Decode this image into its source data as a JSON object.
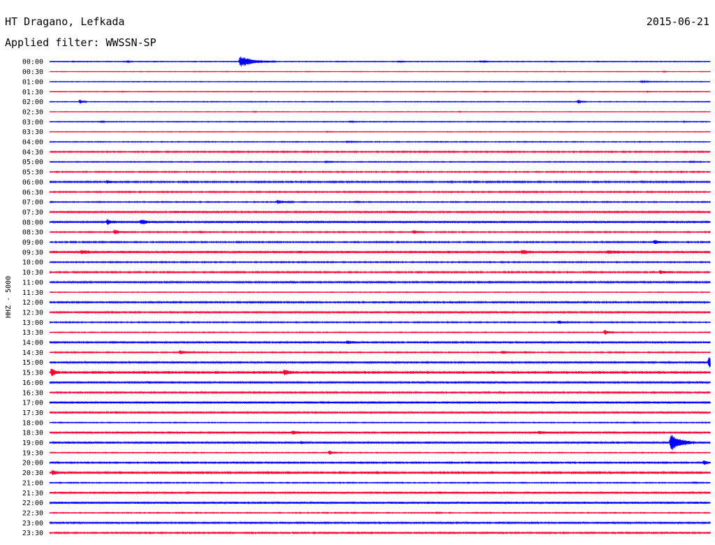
{
  "header": {
    "station": "HT Dragano, Lefkada",
    "date": "2015-06-21",
    "filter": "Applied filter: WWSSN-SP"
  },
  "chart_data": {
    "type": "line",
    "ylabel": "HHZ - 5000",
    "colors": {
      "even": "#0000ff",
      "odd": "#ff0033"
    },
    "rows": [
      {
        "label": "00:00",
        "noise": 0.6,
        "events": [
          [
            0.035,
            0.45,
            7
          ],
          [
            0.118,
            1.0,
            7
          ],
          [
            0.288,
            8.0,
            40
          ],
          [
            0.528,
            1.1,
            10
          ],
          [
            0.652,
            1.5,
            12
          ],
          [
            0.76,
            0.4,
            5
          ]
        ]
      },
      {
        "label": "00:30",
        "noise": 0.5,
        "events": [
          [
            0.268,
            0.5,
            4
          ],
          [
            0.93,
            0.6,
            5
          ]
        ]
      },
      {
        "label": "01:00",
        "noise": 0.5,
        "events": [
          [
            0.785,
            0.5,
            5
          ],
          [
            0.895,
            0.9,
            30
          ]
        ]
      },
      {
        "label": "01:30",
        "noise": 0.5,
        "events": [
          [
            0.11,
            0.5,
            5
          ],
          [
            0.66,
            0.5,
            5
          ],
          [
            0.905,
            0.5,
            5
          ]
        ]
      },
      {
        "label": "02:00",
        "noise": 0.6,
        "events": [
          [
            0.046,
            3.5,
            8
          ],
          [
            0.8,
            3.2,
            8
          ]
        ]
      },
      {
        "label": "02:30",
        "noise": 0.5,
        "events": [
          [
            0.31,
            0.5,
            5
          ],
          [
            0.62,
            0.5,
            5
          ]
        ]
      },
      {
        "label": "03:00",
        "noise": 0.6,
        "events": [
          [
            0.077,
            0.7,
            14
          ],
          [
            0.455,
            1.2,
            10
          ],
          [
            0.785,
            0.5,
            5
          ],
          [
            0.96,
            0.5,
            5
          ]
        ]
      },
      {
        "label": "03:30",
        "noise": 0.5,
        "events": [
          [
            0.42,
            0.6,
            6
          ]
        ]
      },
      {
        "label": "04:00",
        "noise": 0.7,
        "events": [
          [
            0.45,
            0.7,
            15
          ]
        ]
      },
      {
        "label": "04:30",
        "noise": 1.0,
        "events": []
      },
      {
        "label": "05:00",
        "noise": 0.7,
        "events": [
          [
            0.418,
            1.0,
            10
          ],
          [
            0.97,
            0.8,
            15
          ]
        ]
      },
      {
        "label": "05:30",
        "noise": 0.9,
        "events": [
          [
            0.37,
            0.6,
            10
          ],
          [
            0.885,
            0.7,
            10
          ]
        ]
      },
      {
        "label": "06:00",
        "noise": 1.1,
        "events": [
          [
            0.087,
            2.5,
            12
          ]
        ]
      },
      {
        "label": "06:30",
        "noise": 1.0,
        "events": [
          [
            0.72,
            0.6,
            12
          ]
        ]
      },
      {
        "label": "07:00",
        "noise": 0.8,
        "events": [
          [
            0.345,
            2.5,
            20
          ],
          [
            0.465,
            1.0,
            5
          ]
        ]
      },
      {
        "label": "07:30",
        "noise": 1.3,
        "events": [
          [
            0.19,
            0.9,
            40
          ],
          [
            0.52,
            0.9,
            40
          ]
        ]
      },
      {
        "label": "08:00",
        "noise": 1.6,
        "events": [
          [
            0.087,
            3.5,
            12
          ],
          [
            0.138,
            3.5,
            16
          ]
        ]
      },
      {
        "label": "08:30",
        "noise": 0.9,
        "events": [
          [
            0.098,
            3.5,
            18
          ],
          [
            0.228,
            1.5,
            6
          ],
          [
            0.55,
            2.5,
            14
          ]
        ]
      },
      {
        "label": "09:00",
        "noise": 1.0,
        "events": [
          [
            0.915,
            3.0,
            16
          ]
        ]
      },
      {
        "label": "09:30",
        "noise": 1.8,
        "events": [
          [
            0.048,
            3.0,
            14
          ],
          [
            0.715,
            3.0,
            14
          ],
          [
            0.845,
            1.3,
            30
          ]
        ]
      },
      {
        "label": "10:00",
        "noise": 0.9,
        "events": []
      },
      {
        "label": "10:30",
        "noise": 1.1,
        "events": [
          [
            0.924,
            2.5,
            14
          ]
        ]
      },
      {
        "label": "11:00",
        "noise": 1.3,
        "events": []
      },
      {
        "label": "11:30",
        "noise": 0.6,
        "events": []
      },
      {
        "label": "12:00",
        "noise": 1.2,
        "events": []
      },
      {
        "label": "12:30",
        "noise": 1.3,
        "events": []
      },
      {
        "label": "13:00",
        "noise": 0.9,
        "events": [
          [
            0.77,
            2.5,
            12
          ]
        ]
      },
      {
        "label": "13:30",
        "noise": 0.7,
        "events": [
          [
            0.84,
            4.0,
            12
          ]
        ]
      },
      {
        "label": "14:00",
        "noise": 1.4,
        "events": [
          [
            0.45,
            2.5,
            12
          ]
        ]
      },
      {
        "label": "14:30",
        "noise": 0.9,
        "events": [
          [
            0.197,
            3.5,
            18
          ],
          [
            0.685,
            2.5,
            10
          ],
          [
            0.72,
            1.5,
            10
          ]
        ]
      },
      {
        "label": "15:00",
        "noise": 1.4,
        "events": [
          [
            0.998,
            9.0,
            10
          ]
        ]
      },
      {
        "label": "15:30",
        "noise": 2.0,
        "events": [
          [
            0.003,
            6.0,
            10
          ],
          [
            0.355,
            3.0,
            14
          ]
        ]
      },
      {
        "label": "16:00",
        "noise": 1.6,
        "events": []
      },
      {
        "label": "16:30",
        "noise": 1.2,
        "events": []
      },
      {
        "label": "17:00",
        "noise": 1.6,
        "events": []
      },
      {
        "label": "17:30",
        "noise": 1.5,
        "events": [
          [
            0.1,
            1.0,
            8
          ]
        ]
      },
      {
        "label": "18:00",
        "noise": 0.7,
        "events": [
          [
            0.885,
            0.7,
            5
          ]
        ]
      },
      {
        "label": "18:30",
        "noise": 1.3,
        "events": [
          [
            0.368,
            3.0,
            14
          ],
          [
            0.74,
            2.0,
            20
          ]
        ]
      },
      {
        "label": "19:00",
        "noise": 1.6,
        "events": [
          [
            0.2,
            1.2,
            5
          ],
          [
            0.38,
            1.2,
            5
          ],
          [
            0.94,
            12.0,
            28
          ]
        ]
      },
      {
        "label": "19:30",
        "noise": 0.7,
        "events": [
          [
            0.423,
            3.5,
            10
          ]
        ]
      },
      {
        "label": "20:00",
        "noise": 1.2,
        "events": [
          [
            0.99,
            3.0,
            15
          ]
        ]
      },
      {
        "label": "20:30",
        "noise": 2.0,
        "events": [
          [
            0.004,
            3.0,
            8
          ],
          [
            0.362,
            1.5,
            4
          ]
        ]
      },
      {
        "label": "21:00",
        "noise": 0.8,
        "events": [
          [
            0.975,
            1.0,
            6
          ]
        ]
      },
      {
        "label": "21:30",
        "noise": 1.4,
        "events": [
          [
            0.59,
            1.0,
            12
          ]
        ]
      },
      {
        "label": "22:00",
        "noise": 1.6,
        "events": []
      },
      {
        "label": "22:30",
        "noise": 0.8,
        "events": [
          [
            0.585,
            0.7,
            10
          ]
        ]
      },
      {
        "label": "23:00",
        "noise": 1.3,
        "events": []
      },
      {
        "label": "23:30",
        "noise": 1.2,
        "events": []
      }
    ]
  }
}
